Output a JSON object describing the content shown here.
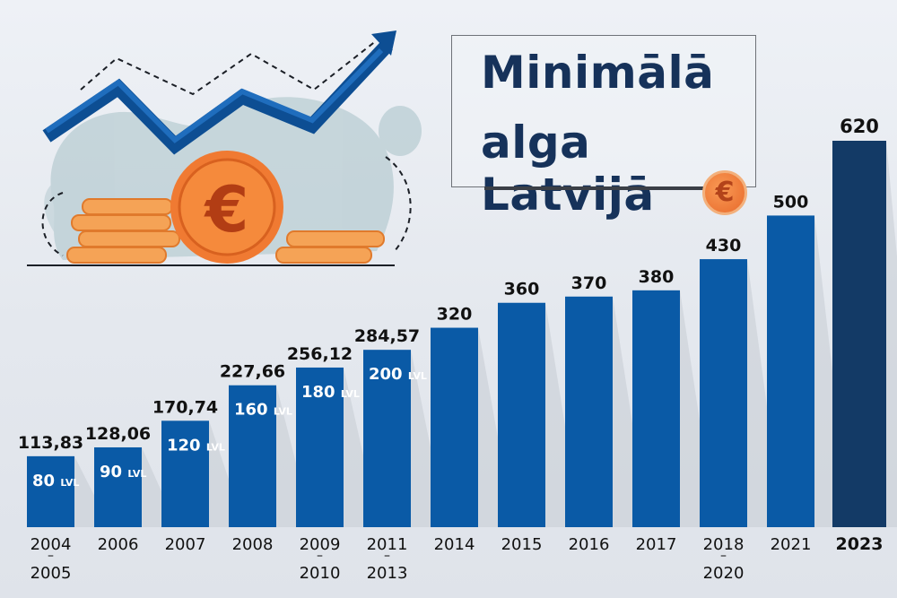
{
  "title": {
    "line1": "Minimālā",
    "line2": "alga Latvijā"
  },
  "icons": {
    "small_coin": "euro-coin-icon",
    "big_coin": "euro-coin-icon",
    "trend": "trend-arrow-icon"
  },
  "colors": {
    "bar": "#0a5aa6",
    "bar_highlight": "#133a66",
    "bar_shadow": "#c7ccd4",
    "text_dark": "#111111",
    "text_light": "#ffffff",
    "coin_orange": "#f07a32"
  },
  "chart_data": {
    "type": "bar",
    "title": "Minimālā alga Latvijā",
    "categories": [
      "2004–2005",
      "2006",
      "2007",
      "2008",
      "2009–2010",
      "2011–2013",
      "2014",
      "2015",
      "2016",
      "2017",
      "2018–2020",
      "2021",
      "2023"
    ],
    "category_lines": [
      [
        "2004",
        "–",
        "2005"
      ],
      [
        "2006"
      ],
      [
        "2007"
      ],
      [
        "2008"
      ],
      [
        "2009",
        "–",
        "2010"
      ],
      [
        "2011",
        "–",
        "2013"
      ],
      [
        "2014"
      ],
      [
        "2015"
      ],
      [
        "2016"
      ],
      [
        "2017"
      ],
      [
        "2018",
        "–",
        "2020"
      ],
      [
        "2021"
      ],
      [
        "2023"
      ]
    ],
    "values": [
      113.83,
      128.06,
      170.74,
      227.66,
      256.12,
      284.57,
      320,
      360,
      370,
      380,
      430,
      500,
      620
    ],
    "value_labels": [
      "113,83",
      "128,06",
      "170,74",
      "227,66",
      "256,12",
      "284,57",
      "320",
      "360",
      "370",
      "380",
      "430",
      "500",
      "620"
    ],
    "lvl_labels": [
      "80",
      "90",
      "120",
      "160",
      "180",
      "200",
      "",
      "",
      "",
      "",
      "",
      "",
      ""
    ],
    "lvl_unit": "LVL",
    "highlight_index": 12,
    "ylim": [
      0,
      620
    ],
    "grid": false,
    "legend": "none"
  }
}
